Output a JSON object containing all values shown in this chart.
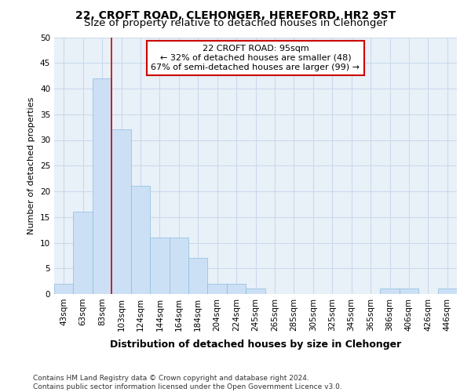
{
  "title1": "22, CROFT ROAD, CLEHONGER, HEREFORD, HR2 9ST",
  "title2": "Size of property relative to detached houses in Clehonger",
  "xlabel": "Distribution of detached houses by size in Clehonger",
  "ylabel": "Number of detached properties",
  "bin_labels": [
    "43sqm",
    "63sqm",
    "83sqm",
    "103sqm",
    "124sqm",
    "144sqm",
    "164sqm",
    "184sqm",
    "204sqm",
    "224sqm",
    "245sqm",
    "265sqm",
    "285sqm",
    "305sqm",
    "325sqm",
    "345sqm",
    "365sqm",
    "386sqm",
    "406sqm",
    "426sqm",
    "446sqm"
  ],
  "bar_values": [
    2,
    16,
    42,
    32,
    21,
    11,
    11,
    7,
    2,
    2,
    1,
    0,
    0,
    0,
    0,
    0,
    0,
    1,
    1,
    0,
    1
  ],
  "bar_color": "#cce0f5",
  "bar_edge_color": "#8bbcdc",
  "ylim": [
    0,
    50
  ],
  "yticks": [
    0,
    5,
    10,
    15,
    20,
    25,
    30,
    35,
    40,
    45,
    50
  ],
  "property_line_x": 2.5,
  "property_line_color": "#cc0000",
  "annotation_text": "22 CROFT ROAD: 95sqm\n← 32% of detached houses are smaller (48)\n67% of semi-detached houses are larger (99) →",
  "annotation_box_color": "#ffffff",
  "annotation_box_edge_color": "#cc0000",
  "grid_color": "#c8d8ea",
  "background_color": "#e8f0f8",
  "footer_text": "Contains HM Land Registry data © Crown copyright and database right 2024.\nContains public sector information licensed under the Open Government Licence v3.0.",
  "title1_fontsize": 10,
  "title2_fontsize": 9.5,
  "xlabel_fontsize": 9,
  "ylabel_fontsize": 8,
  "tick_fontsize": 7.5,
  "annotation_fontsize": 8,
  "footer_fontsize": 6.5
}
